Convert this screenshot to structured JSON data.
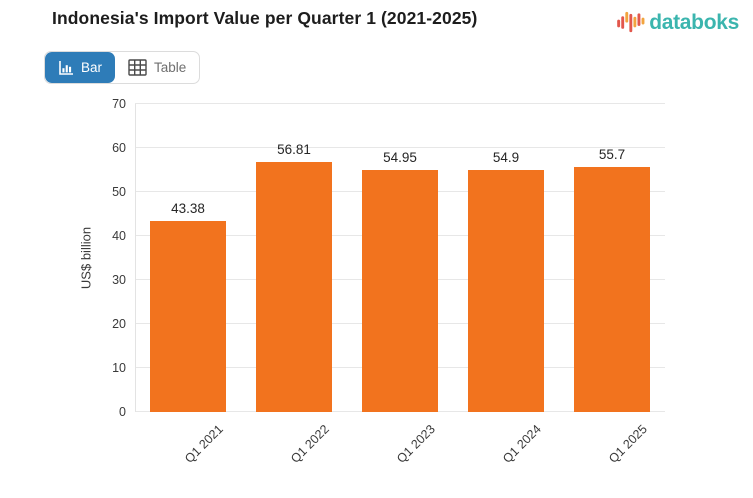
{
  "header": {
    "title": "Indonesia's Import Value per Quarter 1 (2021-2025)"
  },
  "logo": {
    "text": "databoks",
    "text_color": "#3bb5ae",
    "bar_colors": {
      "red": "#e2574c",
      "amber": "#f2a43e"
    }
  },
  "toolbar": {
    "bar_button": {
      "label": "Bar",
      "active": true,
      "bg": "#2e7cb8"
    },
    "table_button": {
      "label": "Table",
      "active": false
    }
  },
  "chart_data": {
    "type": "bar",
    "title": "Indonesia's Import Value per Quarter 1 (2021-2025)",
    "categories": [
      "Q1 2021",
      "Q1 2022",
      "Q1 2023",
      "Q1 2024",
      "Q1 2025"
    ],
    "values": [
      43.38,
      56.81,
      54.95,
      54.9,
      55.7
    ],
    "data_labels": [
      "43.38",
      "56.81",
      "54.95",
      "54.9",
      "55.7"
    ],
    "xlabel": "",
    "ylabel": "US$ billion",
    "ylim": [
      0,
      70
    ],
    "yticks": [
      0,
      10,
      20,
      30,
      40,
      50,
      60,
      70
    ],
    "grid": true,
    "legend": "none",
    "bar_color": "#f2731e"
  }
}
